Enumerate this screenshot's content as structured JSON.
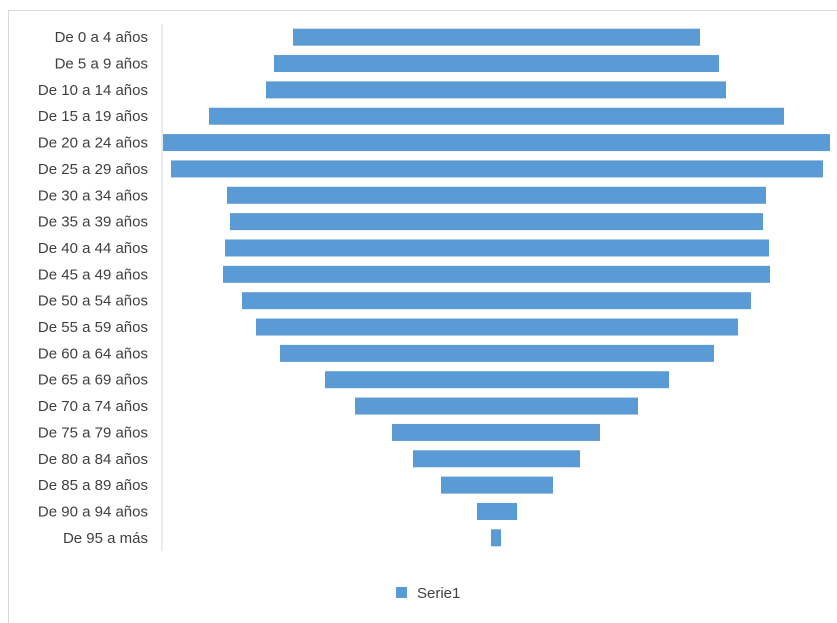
{
  "chart_data": {
    "type": "bar",
    "orientation": "horizontal",
    "categories": [
      "De 0  a 4 años",
      "De 5  a 9 años",
      "De 10 a 14 años",
      "De 15 a 19 años",
      "De 20 a 24 años",
      "De 25 a 29 años",
      "De 30 a 34 años",
      "De 35 a 39 años",
      "De 40 a 44 años",
      "De 45 a 49 años",
      "De 50 a 54 años",
      "De 55 a 59 años",
      "De 60 a 64 años",
      "De 65 a 69 años",
      "De 70 a 74 años",
      "De 75 a 79 años",
      "De 80 a 84 años",
      "De 85 a 89 años",
      "De 90 a 94 años",
      "De 95 a más"
    ],
    "series": [
      {
        "name": "Serie1",
        "color": "#5b9bd5",
        "ranges": [
          [
            293,
            700
          ],
          [
            274,
            719
          ],
          [
            266,
            726
          ],
          [
            209,
            784
          ],
          [
            163,
            830
          ],
          [
            171,
            823
          ],
          [
            227,
            766
          ],
          [
            230,
            763
          ],
          [
            225,
            769
          ],
          [
            223,
            770
          ],
          [
            242,
            751
          ],
          [
            256,
            738
          ],
          [
            280,
            714
          ],
          [
            325,
            669
          ],
          [
            355,
            638
          ],
          [
            392,
            600
          ],
          [
            413,
            580
          ],
          [
            441,
            553
          ],
          [
            477,
            517
          ],
          [
            491,
            501
          ]
        ]
      }
    ],
    "grid": false,
    "legend": "bottom"
  },
  "legend": {
    "label": "Serie1"
  }
}
